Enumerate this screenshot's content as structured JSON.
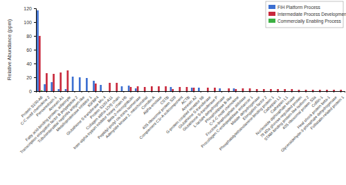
{
  "chart_data": {
    "type": "bar",
    "y_label": "Relative Abundance (ppm)",
    "categories": [
      "Protein S100-A6",
      "C-C motif chemokine 2",
      "Peroxiredoxin-1",
      "Annexin A1",
      "Fatty acid-binding protein, adipocyte",
      "Transcription elongation factor B polypeptide 2",
      "Tubulointerstitial nephritis antigen-like",
      "Metalloproteinase inhibitor 1",
      "IGFBP4",
      "Glutathione S-transferase Mu 4",
      "Protein S100-A11",
      "Collagen alpha-1(VI) chain",
      "Inter-alpha-trypsin inhibitor heavy chain H5",
      "Beta-2-microglobulin",
      "Peptidyl-prolyl cis-trans isomerase",
      "Adenylate kinase 2, mitochondrial",
      "Cornifin-A",
      "Alpha-enolase",
      "CSTB",
      "40S ribosomal protein S28",
      "Complement C1r-A subcomponent",
      "ACTB",
      "Annexin A2",
      "G-protein coupled receptor 56",
      "Glutathione S-transferase",
      "Glutathione S-transferase P",
      "L-lactate dehydrogenase",
      "Phospholipase B-like",
      "C-X-C motif chemokine",
      "Fructose-bisphosphate aldolase",
      "Procollagen C-endopeptidase enhancer 1",
      "Malate dehydrogenase",
      "Elongation factor 2",
      "Phosphatidylethanolamine-binding protein 1",
      "Cathepsin L1",
      "Cathepsin L1",
      "Nucleoside diphosphate kinase",
      "78 kDa glucose-regulated protein",
      "STAM-binding protein-like isoform 2",
      "40S ribosomal protein S3a",
      "Cofilin-1",
      "Heat shock protein beta-1",
      "Glyceraldehyde-3-phosphate dehydrogenase",
      "Follistatin-related protein 1"
    ],
    "series": [
      {
        "name": "FIH Platform Process",
        "color": "#3c6fd1",
        "values": [
          117,
          10,
          13,
          3,
          3,
          21,
          20,
          19,
          15,
          9,
          0,
          0,
          7,
          8,
          4,
          0,
          0,
          0,
          0,
          6,
          0,
          0,
          5,
          5,
          0,
          0,
          4,
          0,
          4,
          0,
          0,
          0,
          0,
          0,
          0,
          0,
          0,
          0,
          0,
          0,
          0,
          0,
          0,
          0
        ]
      },
      {
        "name": "Intermediate Process Development",
        "color": "#c8283c",
        "values": [
          80,
          26,
          25,
          27,
          30,
          0,
          0,
          0,
          11,
          0,
          12,
          12,
          0,
          6,
          7,
          6,
          7,
          7,
          7,
          3,
          6,
          6,
          5,
          0,
          5,
          5,
          0,
          4,
          3,
          4,
          4,
          3,
          3,
          3,
          3,
          3,
          3,
          2,
          2,
          2,
          2,
          2,
          2,
          2
        ]
      },
      {
        "name": "Commercially Enabling Process",
        "color": "#3cb043",
        "values": [
          1,
          0,
          0,
          0,
          0,
          0,
          0,
          0,
          0,
          0,
          0,
          0,
          0,
          0,
          0,
          0,
          0,
          0,
          0,
          0,
          0,
          0,
          0,
          0,
          0,
          0,
          0,
          0,
          0,
          0,
          0,
          0,
          0,
          0,
          0,
          0,
          0,
          0,
          0,
          0,
          0,
          0,
          0,
          0
        ]
      }
    ],
    "ylim": [
      0,
      120
    ],
    "yticks": [
      0,
      20,
      40,
      60,
      80,
      100,
      120
    ],
    "grid": false,
    "legend": "upper right"
  }
}
